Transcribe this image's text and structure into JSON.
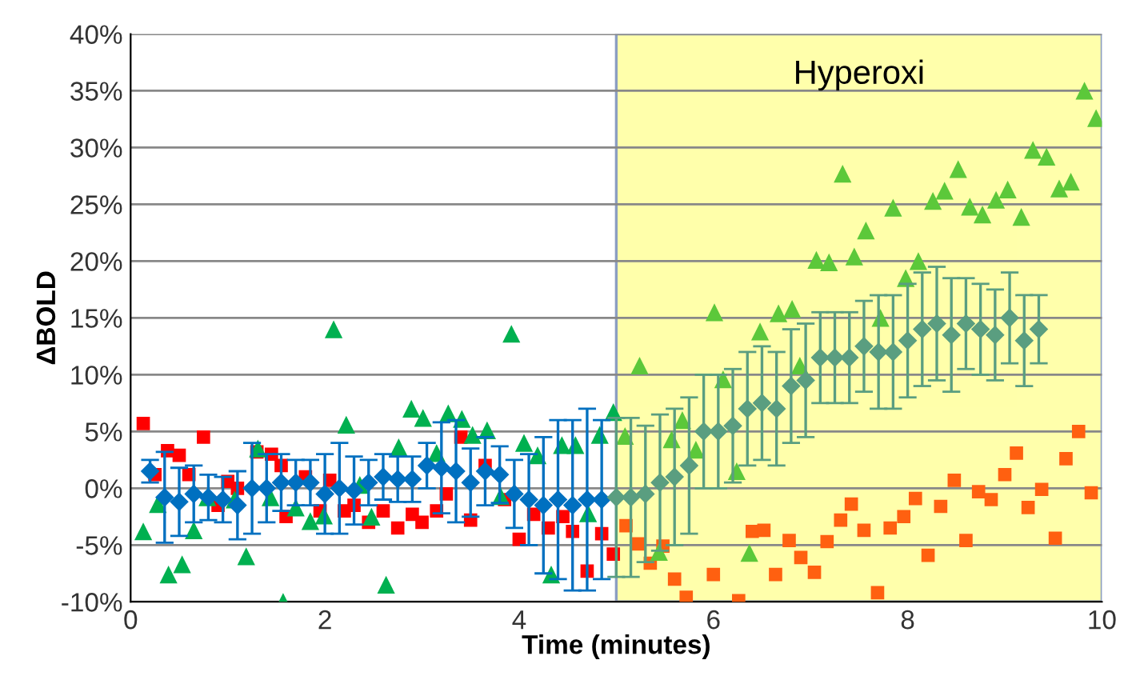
{
  "chart_data": {
    "type": "scatter",
    "xlabel": "Time (minutes)",
    "ylabel": "ΔBOLD",
    "xlim": [
      0,
      10
    ],
    "xticks": [
      0,
      2,
      4,
      6,
      8,
      10
    ],
    "ylim": [
      -10,
      40
    ],
    "yticks": [
      {
        "value": -10,
        "label": "-10%"
      },
      {
        "value": -5,
        "label": "-5%"
      },
      {
        "value": 0,
        "label": "0%"
      },
      {
        "value": 5,
        "label": "5%"
      },
      {
        "value": 10,
        "label": "10%"
      },
      {
        "value": 15,
        "label": "15%"
      },
      {
        "value": 20,
        "label": "20%"
      },
      {
        "value": 25,
        "label": "25%"
      },
      {
        "value": 30,
        "label": "30%"
      },
      {
        "value": 35,
        "label": "35%"
      },
      {
        "value": 40,
        "label": "40%"
      }
    ],
    "grid": "y",
    "legend": false,
    "bands": [
      {
        "axis": "x",
        "from": 5,
        "to": 10,
        "label": "Hyperoxi",
        "color": "#ffff66"
      }
    ],
    "series": [
      {
        "marker": "square",
        "colors": [
          "#ff0000",
          "#ff0000",
          "#ff0000",
          "#ff0000",
          "#ff0000",
          "#ff0000",
          "#ff0000",
          "#ff0000",
          "#ff0000",
          "#ff0000",
          "#ff0000",
          "#ff0000",
          "#ff0000",
          "#ff0000",
          "#ff0000",
          "#ff0000",
          "#ff0000",
          "#ff0000",
          "#ff0000",
          "#ff0000",
          "#ff0000",
          "#ff0000",
          "#ff0000",
          "#ff0000",
          "#ff0000",
          "#ff0000",
          "#ff0000",
          "#ff0000",
          "#ff0000",
          "#ff0000",
          "#ff0000",
          "#ff0000",
          "#ff0000",
          "#ff0000",
          "#ff0000",
          "#ff0000",
          "#ff0000",
          "#ff6010",
          "#ff6010",
          "#ff6010",
          "#ff6010",
          "#ff6010",
          "#ff6010",
          "#ff6010",
          "#ff6010",
          "#ff6010",
          "#ff6010",
          "#ff6010",
          "#ff6010",
          "#ff6010",
          "#ff6010",
          "#ff6010",
          "#ff6010",
          "#ff6010",
          "#ff6010",
          "#ff6010",
          "#ff6010",
          "#ff6010",
          "#ff6010",
          "#ff6010",
          "#ff6010",
          "#ff6010",
          "#ff6010",
          "#ff6010",
          "#ff6010",
          "#ff6010",
          "#ff6010",
          "#ff6010",
          "#ff6010",
          "#ff6010",
          "#ff6010",
          "#ff6010",
          "#ff6010"
        ],
        "x": [
          0.13,
          0.25,
          0.38,
          0.5,
          0.6,
          0.75,
          0.9,
          1.0,
          1.1,
          1.3,
          1.45,
          1.55,
          1.6,
          1.8,
          1.95,
          2.05,
          2.2,
          2.3,
          2.45,
          2.6,
          2.75,
          2.9,
          3.0,
          3.15,
          3.25,
          3.4,
          3.5,
          3.65,
          3.85,
          4.0,
          4.15,
          4.3,
          4.45,
          4.55,
          4.7,
          4.85,
          4.97,
          5.1,
          5.23,
          5.35,
          5.48,
          5.6,
          5.72,
          6.0,
          6.26,
          6.4,
          6.52,
          6.64,
          6.78,
          6.9,
          7.04,
          7.17,
          7.31,
          7.42,
          7.55,
          7.69,
          7.82,
          7.96,
          8.08,
          8.21,
          8.34,
          8.48,
          8.6,
          8.73,
          8.86,
          9.0,
          9.12,
          9.24,
          9.38,
          9.52,
          9.63,
          9.76,
          9.89
        ],
        "values": [
          5.7,
          1.2,
          3.3,
          2.9,
          1.2,
          4.5,
          -1.5,
          0.6,
          0,
          3.2,
          3,
          2,
          -2.5,
          1,
          -2,
          0.7,
          -2,
          -1.5,
          -3,
          -2,
          -3.5,
          -2.3,
          -3,
          -2,
          -0.5,
          4.5,
          -2.8,
          2,
          -1,
          -4.5,
          -2.3,
          -3.5,
          -2.5,
          -3.8,
          -7.3,
          -4,
          -5.8,
          -3.3,
          -4.9,
          -6.6,
          -5.1,
          -8,
          -9.6,
          -7.6,
          -9.9,
          -3.8,
          -3.7,
          -7.6,
          -4.6,
          -6.1,
          -7.4,
          -4.7,
          -2.8,
          -1.4,
          -3.7,
          -9.2,
          -3.5,
          -2.5,
          -0.9,
          -5.9,
          -1.6,
          0.7,
          -4.6,
          -0.3,
          -1,
          1.2,
          3.1,
          -1.7,
          -0.1,
          -4.4,
          2.6,
          5,
          -0.4
        ]
      },
      {
        "marker": "triangle",
        "colors": [
          "#00b050",
          "#00b050",
          "#00b050",
          "#00b050",
          "#00b050",
          "#00b050",
          "#00b050",
          "#00b050",
          "#00b050",
          "#00b050",
          "#00b050",
          "#00b050",
          "#00b050",
          "#00b050",
          "#00b050",
          "#00b050",
          "#00b050",
          "#00b050",
          "#00b050",
          "#00b050",
          "#00b050",
          "#00b050",
          "#00b050",
          "#00b050",
          "#00b050",
          "#00b050",
          "#00b050",
          "#00b050",
          "#00b050",
          "#00b050",
          "#00b050",
          "#00b050",
          "#00b050",
          "#00b050",
          "#00b050",
          "#00b050",
          "#00b050",
          "#5cc83a",
          "#5cc83a",
          "#5cc83a",
          "#5cc83a",
          "#5cc83a",
          "#5cc83a",
          "#5cc83a",
          "#5cc83a",
          "#5cc83a",
          "#5cc83a",
          "#5cc83a",
          "#5cc83a",
          "#5cc83a",
          "#5cc83a",
          "#5cc83a",
          "#5cc83a",
          "#5cc83a",
          "#5cc83a",
          "#5cc83a",
          "#5cc83a",
          "#5cc83a",
          "#5cc83a",
          "#5cc83a",
          "#5cc83a",
          "#5cc83a",
          "#5cc83a",
          "#5cc83a",
          "#5cc83a",
          "#5cc83a",
          "#5cc83a",
          "#5cc83a",
          "#5cc83a",
          "#5cc83a",
          "#5cc83a",
          "#5cc83a",
          "#5cc83a",
          "#5cc83a"
        ],
        "x": [
          0.13,
          0.28,
          0.39,
          0.53,
          0.65,
          0.79,
          1.07,
          1.19,
          1.31,
          1.44,
          1.57,
          1.7,
          1.85,
          1.99,
          2.09,
          2.22,
          2.36,
          2.48,
          2.63,
          2.76,
          2.89,
          3.01,
          3.15,
          3.27,
          3.41,
          3.52,
          3.67,
          3.81,
          3.92,
          4.05,
          4.19,
          4.33,
          4.44,
          4.58,
          4.71,
          4.83,
          4.97,
          5.09,
          5.24,
          5.44,
          5.57,
          5.68,
          5.82,
          6.01,
          6.1,
          6.24,
          6.37,
          6.48,
          6.67,
          6.81,
          6.89,
          7.06,
          7.19,
          7.33,
          7.45,
          7.57,
          7.72,
          7.85,
          7.98,
          8.11,
          8.26,
          8.38,
          8.52,
          8.64,
          8.77,
          8.91,
          9.03,
          9.17,
          9.29,
          9.43,
          9.56,
          9.68,
          9.82,
          9.94
        ],
        "values": [
          -3.8,
          -1.4,
          -7.6,
          -6.7,
          -3.7,
          -0.8,
          -1,
          -6,
          3.5,
          -0.8,
          -10,
          -1.7,
          -2.9,
          -2.4,
          14,
          5.6,
          0.3,
          -2.5,
          -8.5,
          3.6,
          7,
          6.2,
          3.1,
          6.6,
          6.1,
          4.7,
          5.1,
          -0.7,
          13.6,
          4,
          2.9,
          -7.6,
          3.8,
          3.8,
          -2.2,
          4.7,
          6.7,
          4.6,
          10.8,
          -5.6,
          4.3,
          6,
          3.4,
          15.5,
          9.6,
          1.5,
          -5.7,
          13.8,
          15.4,
          15.8,
          10.8,
          20.1,
          19.9,
          27.7,
          20.4,
          22.7,
          15,
          24.7,
          18.5,
          20,
          25.3,
          26.2,
          28.1,
          24.8,
          24.1,
          25.4,
          26.3,
          23.9,
          29.8,
          29.2,
          26.4,
          27,
          35,
          32.6
        ]
      },
      {
        "marker": "diamond",
        "colors": [
          "#0070c0",
          "#0070c0",
          "#0070c0",
          "#0070c0",
          "#0070c0",
          "#0070c0",
          "#0070c0",
          "#0070c0",
          "#0070c0",
          "#0070c0",
          "#0070c0",
          "#0070c0",
          "#0070c0",
          "#0070c0",
          "#0070c0",
          "#0070c0",
          "#0070c0",
          "#0070c0",
          "#0070c0",
          "#0070c0",
          "#0070c0",
          "#0070c0",
          "#0070c0",
          "#0070c0",
          "#0070c0",
          "#0070c0",
          "#0070c0",
          "#0070c0",
          "#0070c0",
          "#0070c0",
          "#0070c0",
          "#0070c0",
          "#5a9e80",
          "#5a9e80",
          "#5a9e80",
          "#5a9e80",
          "#5a9e80",
          "#5a9e80",
          "#5a9e80",
          "#5a9e80",
          "#5a9e80",
          "#5a9e80",
          "#5a9e80",
          "#5a9e80",
          "#5a9e80",
          "#5a9e80",
          "#5a9e80",
          "#5a9e80",
          "#5a9e80",
          "#5a9e80",
          "#5a9e80",
          "#5a9e80",
          "#5a9e80",
          "#5a9e80",
          "#5a9e80",
          "#5a9e80",
          "#5a9e80",
          "#5a9e80",
          "#5a9e80",
          "#5a9e80",
          "#5a9e80",
          "#5a9e80"
        ],
        "x": [
          0.2,
          0.35,
          0.5,
          0.65,
          0.8,
          0.95,
          1.1,
          1.25,
          1.4,
          1.55,
          1.7,
          1.85,
          2.0,
          2.15,
          2.3,
          2.45,
          2.6,
          2.75,
          2.9,
          3.05,
          3.2,
          3.35,
          3.5,
          3.65,
          3.8,
          3.95,
          4.1,
          4.25,
          4.4,
          4.55,
          4.7,
          4.85,
          5.0,
          5.15,
          5.3,
          5.45,
          5.6,
          5.75,
          5.9,
          6.05,
          6.2,
          6.35,
          6.5,
          6.65,
          6.8,
          6.95,
          7.1,
          7.25,
          7.4,
          7.55,
          7.7,
          7.85,
          8.0,
          8.15,
          8.3,
          8.45,
          8.6,
          8.75,
          8.9,
          9.05,
          9.2,
          9.35
        ],
        "values": [
          1.5,
          -0.8,
          -1.2,
          -0.5,
          -0.8,
          -1,
          -1.5,
          0,
          0,
          0.5,
          0.5,
          0.5,
          -0.5,
          0,
          -0.2,
          0.5,
          1,
          0.8,
          0.8,
          2,
          1.8,
          1.5,
          0.5,
          1.5,
          1.2,
          -0.5,
          -1,
          -1.5,
          -1,
          -1.5,
          -1,
          -1,
          -0.8,
          -0.8,
          -0.5,
          0.5,
          1,
          2,
          5,
          5,
          5.5,
          7,
          7.5,
          7,
          9,
          9.5,
          11.5,
          11.5,
          11.5,
          12.5,
          12,
          12,
          13,
          14,
          14.5,
          13.5,
          14.5,
          14,
          13.5,
          15,
          13,
          14
        ],
        "errors": [
          1,
          4,
          3,
          2.5,
          2,
          2,
          3,
          4,
          3,
          2.5,
          2,
          2,
          3.5,
          4,
          3,
          2,
          2,
          2,
          2,
          2,
          4,
          4.5,
          3,
          3,
          2.5,
          3,
          4,
          6,
          7,
          7.5,
          8,
          7,
          7,
          7,
          6,
          6,
          6,
          6,
          5,
          5,
          5,
          5,
          5,
          5,
          5,
          5,
          4,
          4,
          4,
          4,
          5,
          5,
          5,
          5,
          5,
          5,
          4,
          4,
          4,
          4,
          4,
          3
        ]
      }
    ]
  }
}
